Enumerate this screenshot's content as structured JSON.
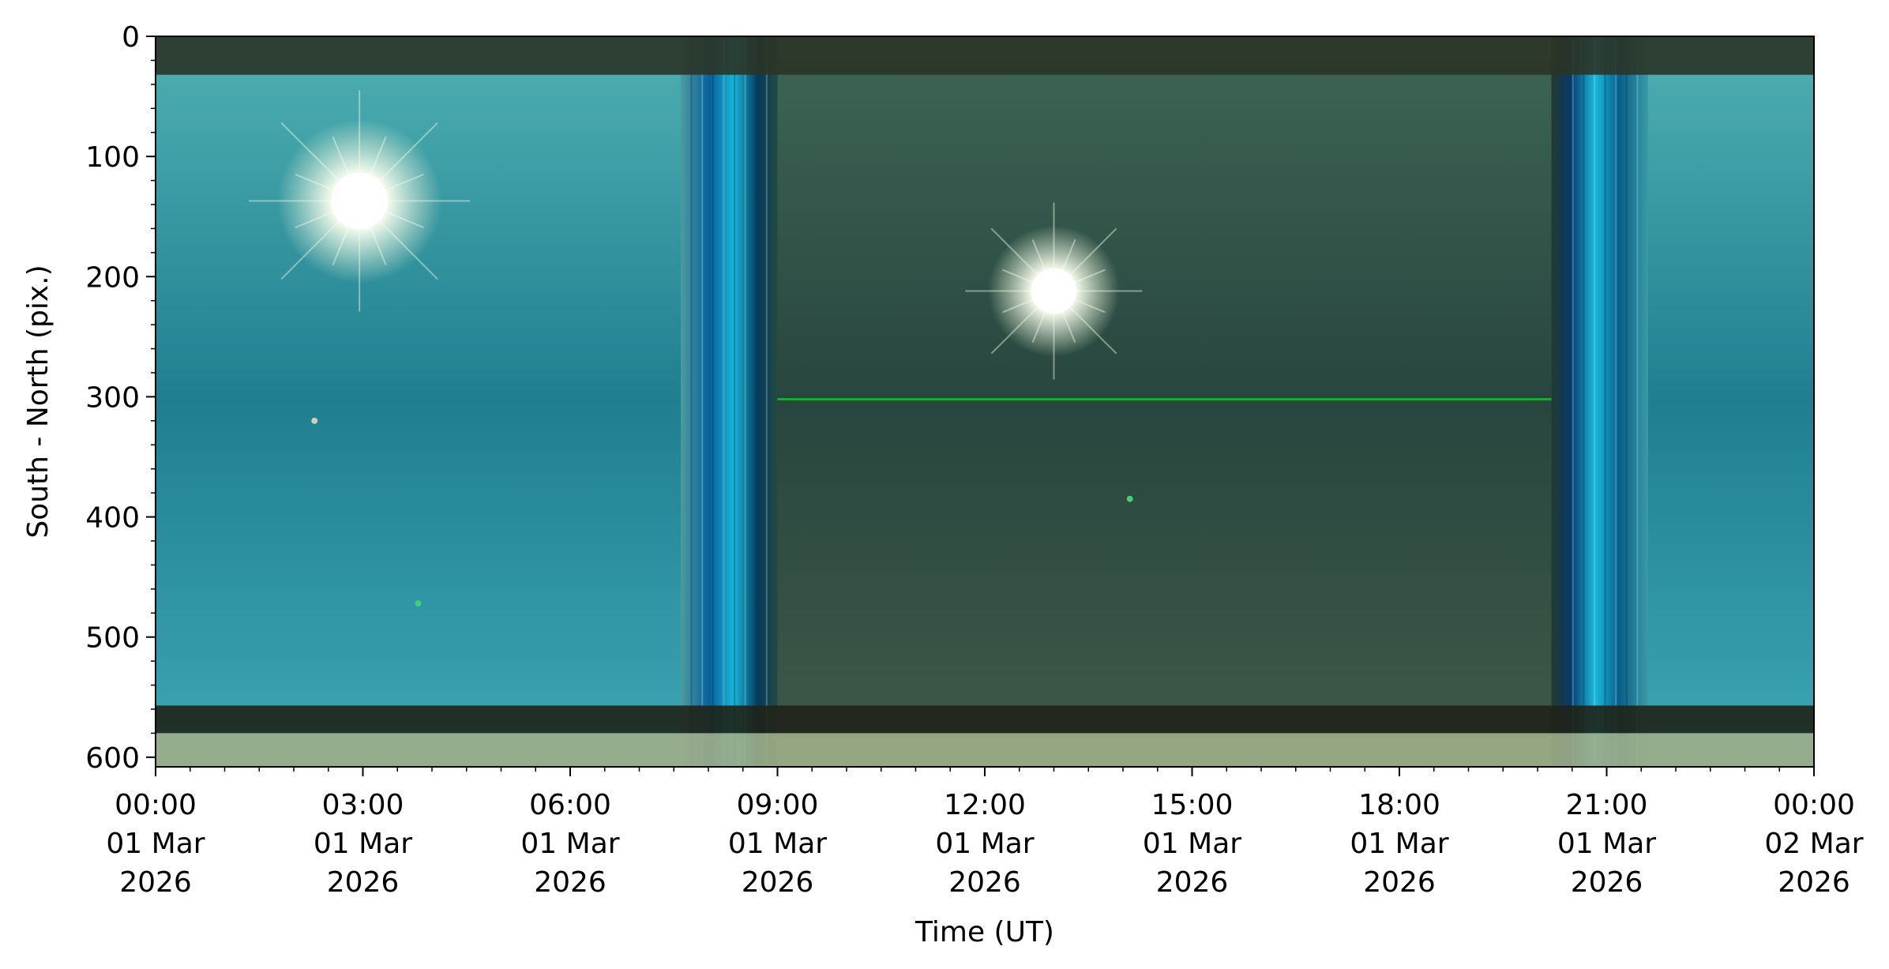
{
  "chart_data": {
    "type": "heatmap",
    "title": "",
    "xlabel": "Time (UT)",
    "ylabel": "South - North (pix.)",
    "xlim": [
      "2026-03-01T00:00",
      "2026-03-02T00:00"
    ],
    "ylim": [
      608,
      0
    ],
    "y_inverted": true,
    "grid": false,
    "x_ticks": [
      {
        "hour": 0,
        "lines": [
          "00:00",
          "01 Mar",
          "2026"
        ]
      },
      {
        "hour": 3,
        "lines": [
          "03:00",
          "01 Mar",
          "2026"
        ]
      },
      {
        "hour": 6,
        "lines": [
          "06:00",
          "01 Mar",
          "2026"
        ]
      },
      {
        "hour": 9,
        "lines": [
          "09:00",
          "01 Mar",
          "2026"
        ]
      },
      {
        "hour": 12,
        "lines": [
          "12:00",
          "01 Mar",
          "2026"
        ]
      },
      {
        "hour": 15,
        "lines": [
          "15:00",
          "01 Mar",
          "2026"
        ]
      },
      {
        "hour": 18,
        "lines": [
          "18:00",
          "01 Mar",
          "2026"
        ]
      },
      {
        "hour": 21,
        "lines": [
          "21:00",
          "01 Mar",
          "2026"
        ]
      },
      {
        "hour": 24,
        "lines": [
          "00:00",
          "02 Mar",
          "2026"
        ]
      }
    ],
    "x_minor_step_hours": 0.5,
    "y_ticks": [
      0,
      100,
      200,
      300,
      400,
      500,
      600
    ],
    "y_minor_step": 20,
    "features": {
      "daylight_segments": [
        {
          "start_hour": 0.0,
          "end_hour": 7.6,
          "color": "#2a8c9a"
        },
        {
          "start_hour": 21.6,
          "end_hour": 24.0,
          "color": "#2b8a98"
        }
      ],
      "night_segment": {
        "start_hour": 9.0,
        "end_hour": 20.2,
        "color": "#2f4c40"
      },
      "twilight_bands": [
        {
          "start_hour": 7.6,
          "end_hour": 9.0,
          "color": "#0d6fa6"
        },
        {
          "start_hour": 20.2,
          "end_hour": 21.6,
          "color": "#0d6fa6"
        }
      ],
      "horizontal_bands": [
        {
          "y_start": 0,
          "y_end": 32,
          "color": "#2b3426"
        },
        {
          "y_start": 557,
          "y_end": 580,
          "color": "#1f2418"
        },
        {
          "y_start": 580,
          "y_end": 608,
          "color": "#9fae88"
        }
      ],
      "sun_positions": [
        {
          "hour": 2.95,
          "y": 137,
          "radius": 40
        },
        {
          "hour": 13.0,
          "y": 212,
          "radius": 32
        }
      ],
      "green_line": {
        "y": 302,
        "start_hour": 9.0,
        "end_hour": 20.2,
        "color": "#1fa83a"
      },
      "bright_dots": [
        {
          "hour": 3.8,
          "y": 472,
          "color": "#3fd07a"
        },
        {
          "hour": 14.1,
          "y": 385,
          "color": "#3fd07a"
        },
        {
          "hour": 2.3,
          "y": 320,
          "color": "#d8c8b0"
        }
      ]
    }
  }
}
